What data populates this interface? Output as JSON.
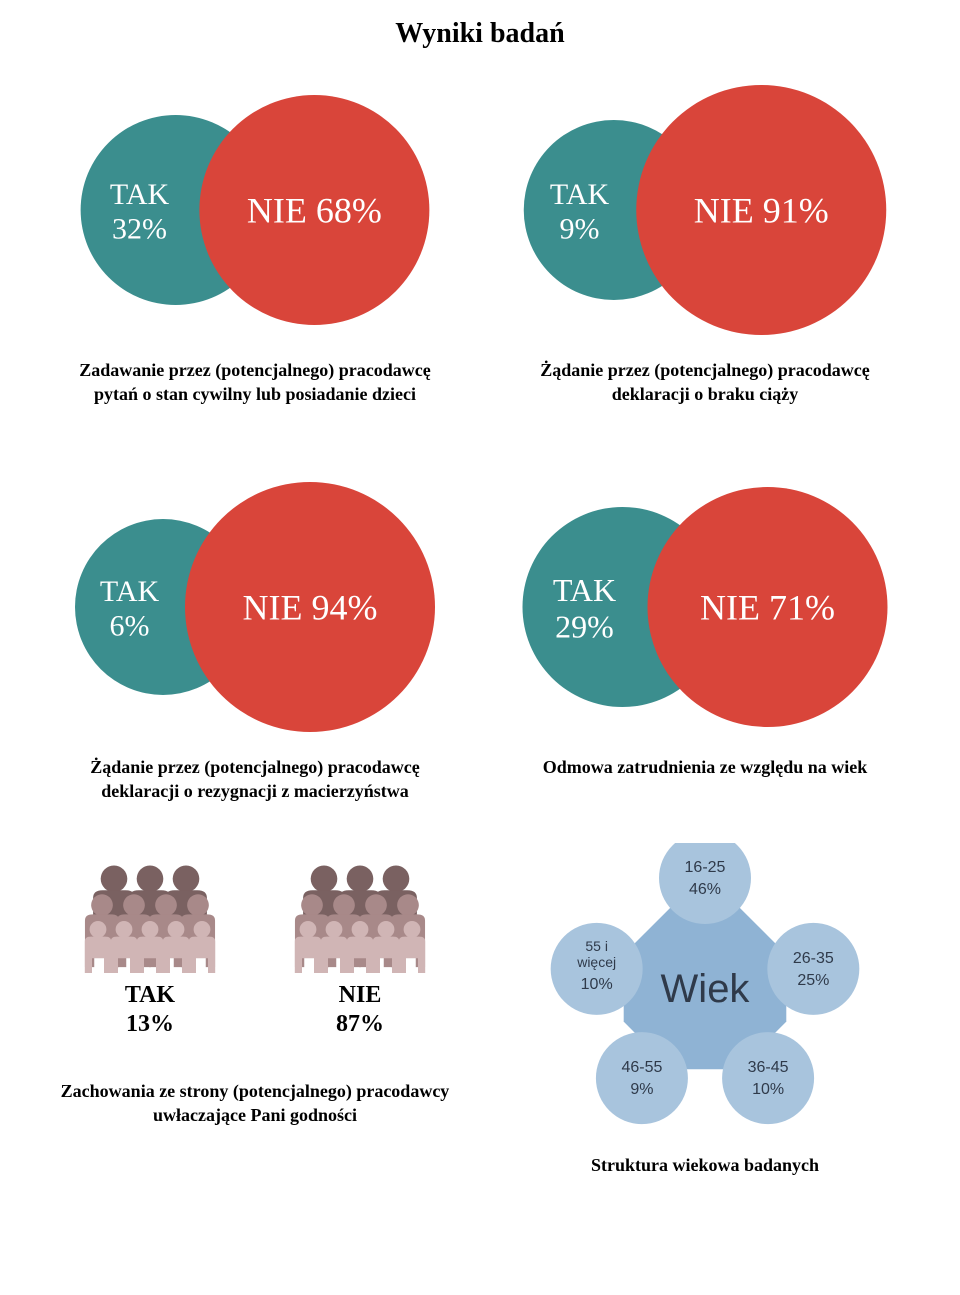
{
  "title": "Wyniki badań",
  "colors": {
    "teal": "#3b8e8e",
    "red": "#d9453a",
    "teal_light": "#5fa7a7",
    "people_dark": "#7a6161",
    "people_mid": "#a88989",
    "people_light": "#d0b5b5",
    "bubble_center": "#8fb3d4",
    "bubble_small": "#a8c4dd",
    "bubble_text": "#2f3a4a",
    "black": "#000000",
    "white": "#ffffff",
    "bg": "#ffffff"
  },
  "venns": [
    {
      "tak_label": "TAK",
      "tak_value": "32%",
      "nie_label": "NIE 68%",
      "caption": "Zadawanie przez (potencjalnego) pracodawcę pytań o stan cywilny lub posiadanie dzieci",
      "tak_r": 95,
      "nie_r": 115,
      "tak_font": 30,
      "nie_font": 36
    },
    {
      "tak_label": "TAK",
      "tak_value": "9%",
      "nie_label": "NIE 91%",
      "caption": "Żądanie przez (potencjalnego) pracodawcę deklaracji o braku ciąży",
      "tak_r": 90,
      "nie_r": 125,
      "tak_font": 30,
      "nie_font": 36
    },
    {
      "tak_label": "TAK",
      "tak_value": "6%",
      "nie_label": "NIE 94%",
      "caption": "Żądanie przez (potencjalnego) pracodawcę deklaracji o rezygnacji z macierzyństwa",
      "tak_r": 88,
      "nie_r": 125,
      "tak_font": 30,
      "nie_font": 36
    },
    {
      "tak_label": "TAK",
      "tak_value": "29%",
      "nie_label": "NIE 71%",
      "caption": "Odmowa zatrudnienia ze względu na wiek",
      "tak_r": 100,
      "nie_r": 120,
      "tak_font": 32,
      "nie_font": 36
    }
  ],
  "people": {
    "tak_label": "TAK",
    "tak_value": "13%",
    "nie_label": "NIE",
    "nie_value": "87%",
    "caption": "Zachowania ze strony (potencjalnego) pracodawcy uwłaczające Pani godności"
  },
  "bubble": {
    "center_label": "Wiek",
    "caption": "Struktura wiekowa badanych",
    "items": [
      {
        "label": "16-25",
        "value": "46%",
        "pos": "top"
      },
      {
        "label": "26-35",
        "value": "25%",
        "pos": "right"
      },
      {
        "label": "36-45",
        "value": "10%",
        "pos": "bottom-right"
      },
      {
        "label": "46-55",
        "value": "9%",
        "pos": "bottom-left"
      },
      {
        "label": "55 i więcej",
        "value": "10%",
        "pos": "left"
      }
    ]
  }
}
